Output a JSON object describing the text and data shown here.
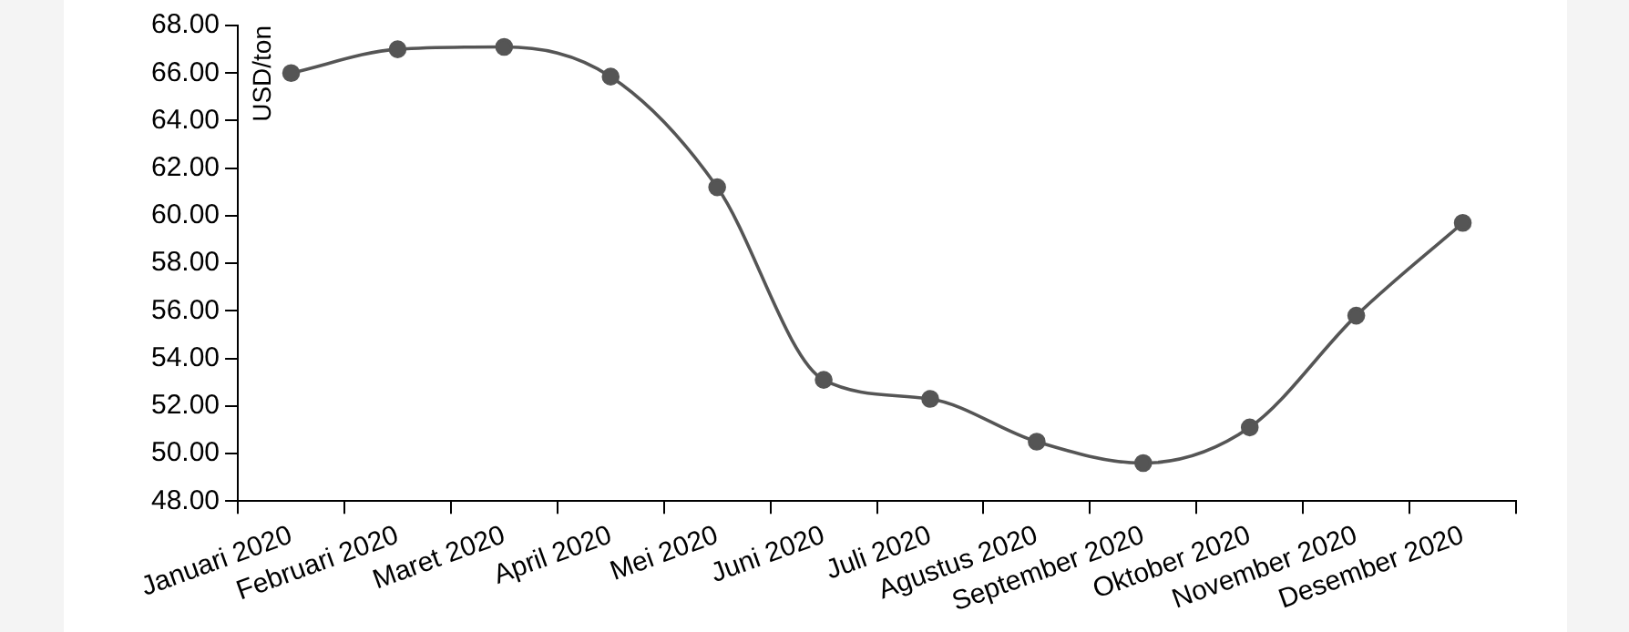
{
  "chart_data": {
    "type": "line",
    "ylabel": "USD/ton",
    "categories": [
      "Januari 2020",
      "Februari 2020",
      "Maret 2020",
      "April 2020",
      "Mei 2020",
      "Juni 2020",
      "Juli 2020",
      "Agustus 2020",
      "September 2020",
      "Oktober 2020",
      "November 2020",
      "Desember 2020"
    ],
    "series": [
      {
        "color": "#555555",
        "values": [
          66.0,
          67.0,
          67.1,
          65.85,
          61.2,
          53.1,
          52.3,
          50.5,
          49.6,
          51.1,
          55.8,
          59.7
        ]
      }
    ],
    "ylim": [
      48,
      68
    ],
    "yticks": [
      {
        "value": 48,
        "label": "48.00"
      },
      {
        "value": 50,
        "label": "50.00"
      },
      {
        "value": 52,
        "label": "52.00"
      },
      {
        "value": 54,
        "label": "54.00"
      },
      {
        "value": 56,
        "label": "56.00"
      },
      {
        "value": 58,
        "label": "58.00"
      },
      {
        "value": 60,
        "label": "60.00"
      },
      {
        "value": 62,
        "label": "62.00"
      },
      {
        "value": 64,
        "label": "64.00"
      },
      {
        "value": 66,
        "label": "66.00"
      },
      {
        "value": 68,
        "label": "68.00"
      }
    ],
    "marker": "circle",
    "line_style": "solid",
    "grid": false,
    "legend": false
  }
}
